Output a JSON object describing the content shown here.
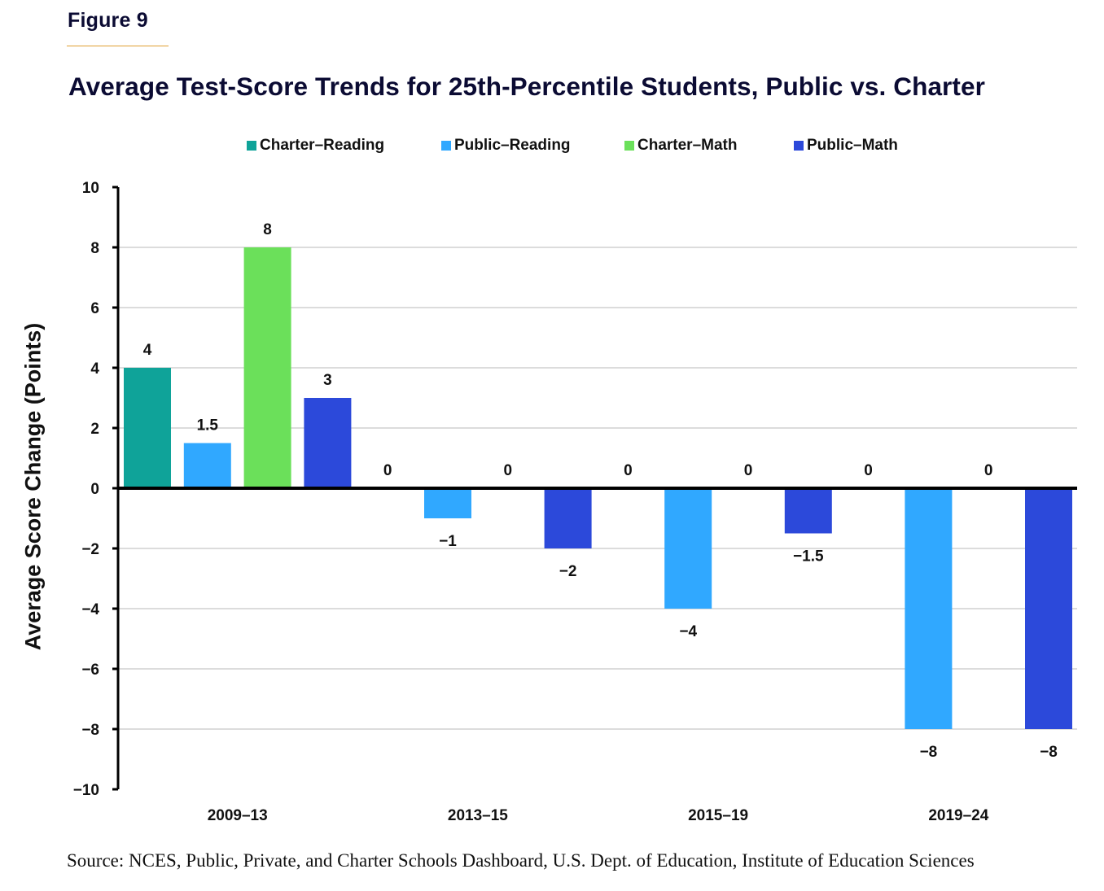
{
  "figure_label": "Figure 9",
  "source": "Source: NCES, Public, Private, and Charter Schools Dashboard, U.S. Dept. of Education, Institute of Education Sciences",
  "colors": {
    "accent_rule": "#e0a030",
    "title_text": "#0b0b33"
  },
  "chart_data": {
    "type": "bar",
    "title": "Average Test-Score Trends for 25th-Percentile Students, Public vs. Charter",
    "xlabel": "",
    "ylabel": "Average Score Change (Points)",
    "ylim": [
      -10,
      10
    ],
    "yticks": [
      10,
      8,
      6,
      4,
      2,
      0,
      -2,
      -4,
      -6,
      -8,
      -10
    ],
    "ytick_labels": [
      "10",
      "8",
      "6",
      "4",
      "2",
      "0",
      "−2",
      "−4",
      "−6",
      "−8",
      "−10"
    ],
    "grid": true,
    "legend_position": "top-center",
    "categories": [
      "2009–13",
      "2013–15",
      "2015–19",
      "2019–24"
    ],
    "series": [
      {
        "name": "Charter–Reading",
        "color": "#0fa399",
        "values": [
          4,
          0,
          0,
          0
        ],
        "labels": [
          "4",
          "0",
          "0",
          "0"
        ]
      },
      {
        "name": "Public–Reading",
        "color": "#30a8ff",
        "values": [
          1.5,
          -1,
          -4,
          -8
        ],
        "labels": [
          "1.5",
          "−1",
          "−4",
          "−8"
        ]
      },
      {
        "name": "Charter–Math",
        "color": "#6be05a",
        "values": [
          8,
          0,
          0,
          0
        ],
        "labels": [
          "8",
          "0",
          "0",
          "0"
        ]
      },
      {
        "name": "Public–Math",
        "color": "#2c49da",
        "values": [
          3,
          -2,
          -1.5,
          -8
        ],
        "labels": [
          "3",
          "−2",
          "−1.5",
          "−8"
        ]
      }
    ]
  }
}
